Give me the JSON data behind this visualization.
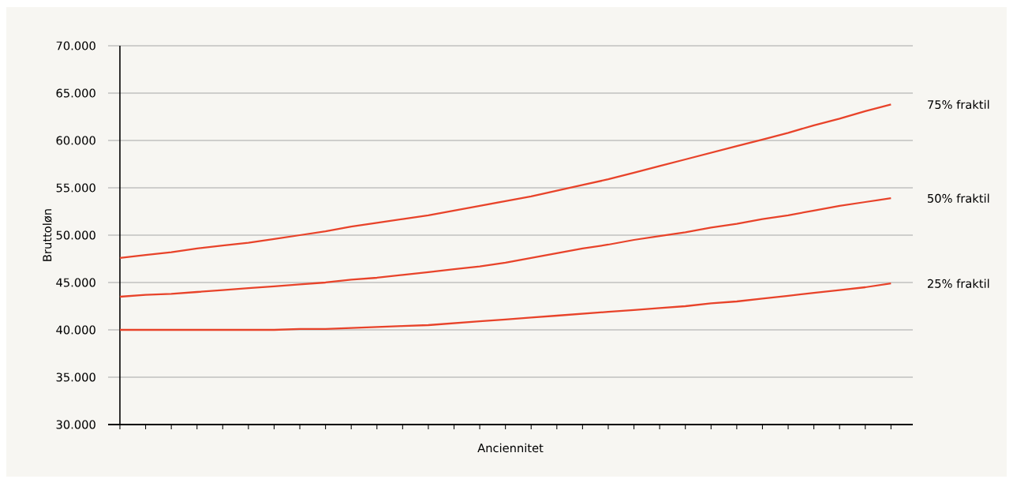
{
  "chart_data": {
    "type": "line",
    "xlabel": "Anciennitet",
    "ylabel": "Bruttoløn",
    "categories": [
      null,
      null,
      null,
      null,
      null,
      null,
      null,
      null,
      null,
      null,
      null,
      null,
      null,
      null,
      null,
      null,
      null,
      null,
      null,
      null,
      null,
      null,
      null,
      null,
      null,
      null,
      null,
      null,
      null,
      null,
      null
    ],
    "ylim": [
      30000,
      70000
    ],
    "yticks": [
      {
        "value": 30000,
        "label": "30.000"
      },
      {
        "value": 35000,
        "label": "35.000"
      },
      {
        "value": 40000,
        "label": "40.000"
      },
      {
        "value": 45000,
        "label": "45.000"
      },
      {
        "value": 50000,
        "label": "50.000"
      },
      {
        "value": 55000,
        "label": "55.000"
      },
      {
        "value": 60000,
        "label": "60.000"
      },
      {
        "value": 65000,
        "label": "65.000"
      },
      {
        "value": 70000,
        "label": "70.000"
      }
    ],
    "grid": "y",
    "marker": "none",
    "line_style": "solid",
    "series": [
      {
        "name": "75% fraktil",
        "color": "#e8432a",
        "values": [
          47600,
          47900,
          48200,
          48600,
          48900,
          49200,
          49600,
          50000,
          50400,
          50900,
          51300,
          51700,
          52100,
          52600,
          53100,
          53600,
          54100,
          54700,
          55300,
          55900,
          56600,
          57300,
          58000,
          58700,
          59400,
          60100,
          60800,
          61600,
          62300,
          63100,
          63800
        ]
      },
      {
        "name": "50% fraktil",
        "color": "#e8432a",
        "values": [
          43500,
          43700,
          43800,
          44000,
          44200,
          44400,
          44600,
          44800,
          45000,
          45300,
          45500,
          45800,
          46100,
          46400,
          46700,
          47100,
          47600,
          48100,
          48600,
          49000,
          49500,
          49900,
          50300,
          50800,
          51200,
          51700,
          52100,
          52600,
          53100,
          53500,
          53900
        ]
      },
      {
        "name": "25% fraktil",
        "color": "#e8432a",
        "values": [
          40000,
          40000,
          40000,
          40000,
          40000,
          40000,
          40000,
          40100,
          40100,
          40200,
          40300,
          40400,
          40500,
          40700,
          40900,
          41100,
          41300,
          41500,
          41700,
          41900,
          42100,
          42300,
          42500,
          42800,
          43000,
          43300,
          43600,
          43900,
          44200,
          44500,
          44900
        ]
      }
    ]
  }
}
